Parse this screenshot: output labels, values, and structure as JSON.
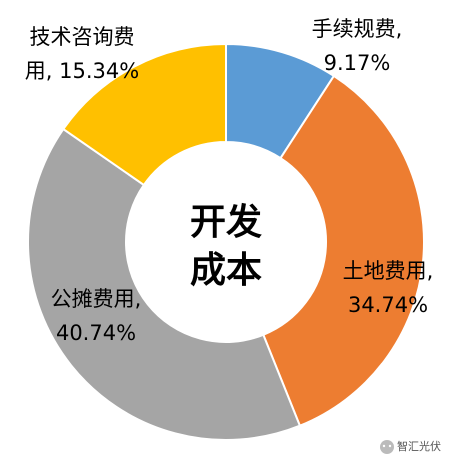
{
  "chart_data": {
    "type": "donut",
    "center_text": [
      "开发",
      "成本"
    ],
    "values": [
      9.17,
      34.74,
      40.74,
      15.34
    ],
    "value_labels": [
      [
        "手续规费,",
        "9.17%"
      ],
      [
        "土地费用,",
        "34.74%"
      ],
      [
        "公摊费用,",
        "40.74%"
      ],
      [
        "技术咨询费",
        "用, 15.34%"
      ]
    ],
    "colors": [
      "#5b9bd5",
      "#ed7d31",
      "#a5a5a5",
      "#ffc000"
    ]
  },
  "watermark": "智汇光伏"
}
